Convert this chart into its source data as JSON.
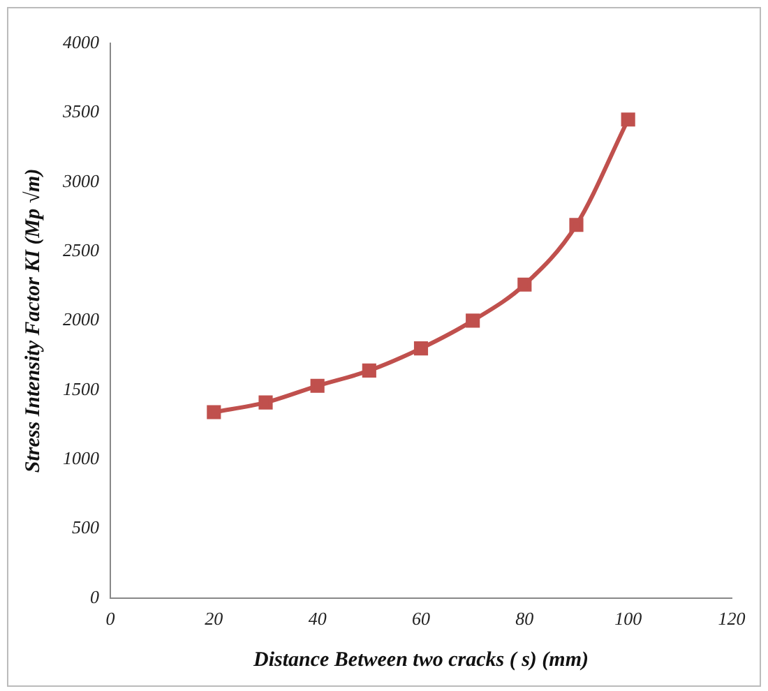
{
  "chart_data": {
    "type": "line",
    "xlabel": "Distance Between two cracks ( s) (mm)",
    "ylabel": "Stress Intensity Factor KI (Mp √m)",
    "x": [
      20,
      30,
      40,
      50,
      60,
      70,
      80,
      90,
      100
    ],
    "series": [
      {
        "color": "#c0504d",
        "values": [
          1340,
          1410,
          1530,
          1640,
          1800,
          2000,
          2260,
          2690,
          3450
        ]
      }
    ],
    "xlim": [
      0,
      120
    ],
    "xticks": [
      0,
      20,
      40,
      60,
      80,
      100,
      120
    ],
    "ylim": [
      0,
      4000
    ],
    "yticks": [
      0,
      500,
      1000,
      1500,
      2000,
      2500,
      3000,
      3500,
      4000
    ],
    "grid": false,
    "legend": false,
    "marker": "square",
    "line_style": "solid"
  }
}
